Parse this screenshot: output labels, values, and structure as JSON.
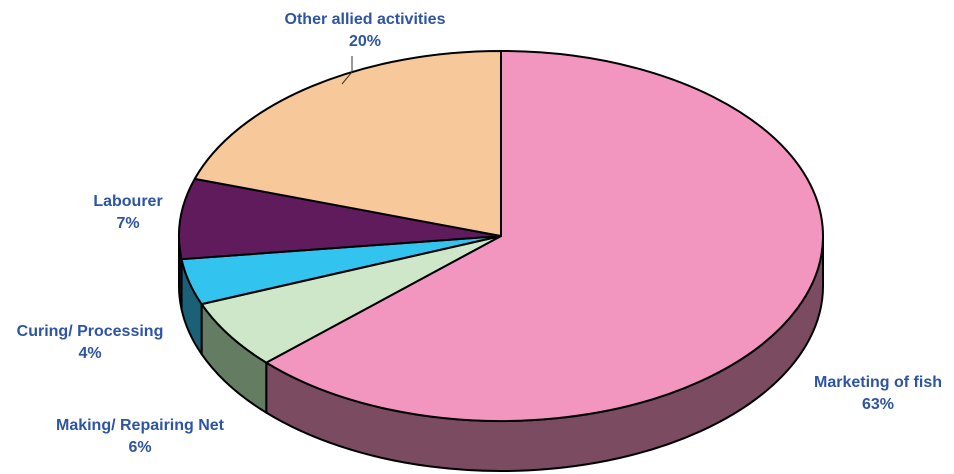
{
  "chart_data": {
    "type": "pie",
    "title": "",
    "slices": [
      {
        "label": "Marketing of fish",
        "value": 63,
        "display": "63%",
        "color": "#f295bf",
        "side_color": "#7a4b61"
      },
      {
        "label": "Making/ Repairing Net",
        "value": 6,
        "display": "6%",
        "color": "#cde7c8",
        "side_color": "#647c62"
      },
      {
        "label": "Curing/ Processing",
        "value": 4,
        "display": "4%",
        "color": "#33c3ef",
        "side_color": "#1a6178"
      },
      {
        "label": "Labourer",
        "value": 7,
        "display": "7%",
        "color": "#5f1b5b",
        "side_color": "#2f0e2d"
      },
      {
        "label": "Other allied activities",
        "value": 20,
        "display": "20%",
        "color": "#f7c99a",
        "side_color": "#7b644d"
      }
    ],
    "label_color": "#2e54a4",
    "outline_color": "#000000",
    "style": "3d-exploded-free"
  }
}
